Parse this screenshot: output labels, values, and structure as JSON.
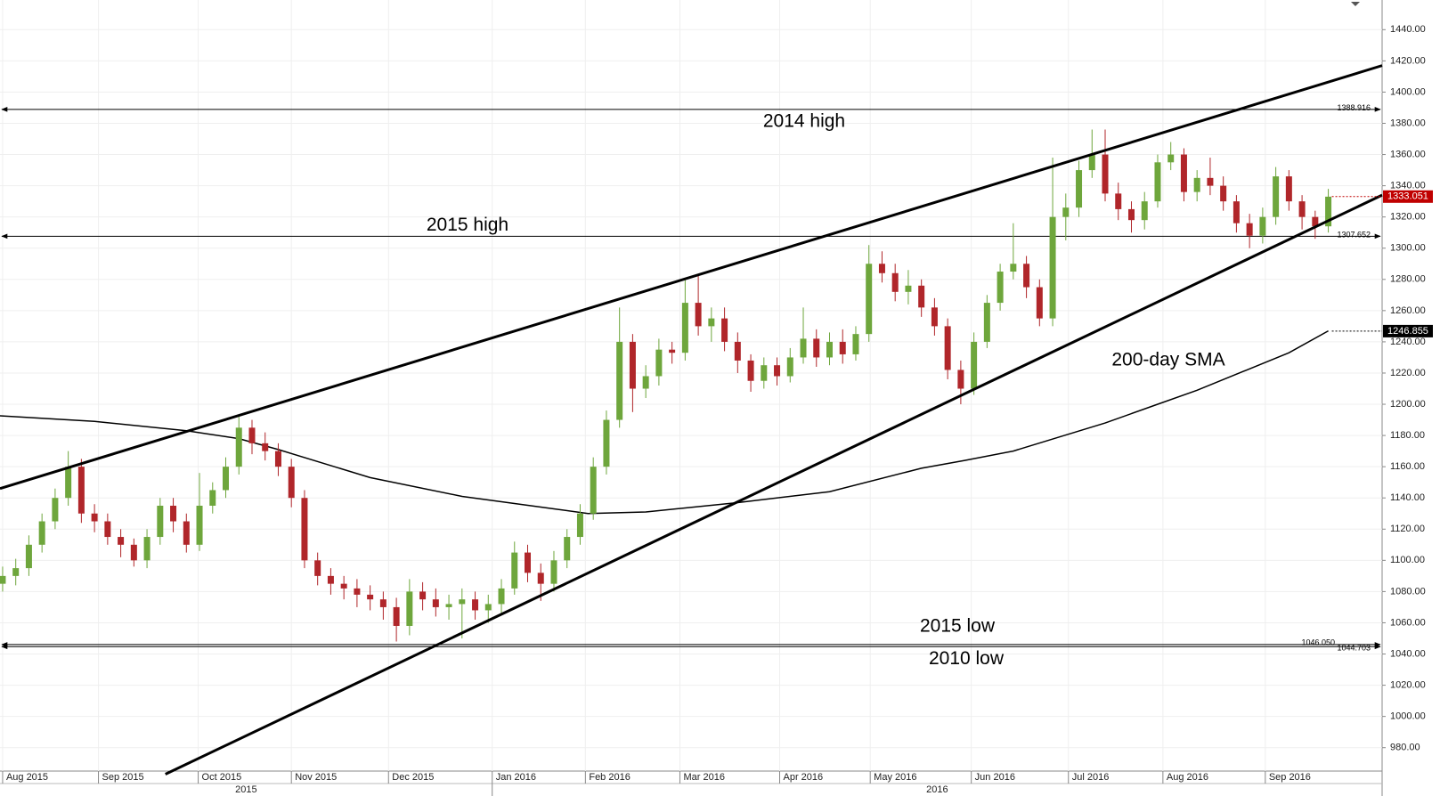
{
  "chart_data": {
    "type": "candlestick",
    "up_color": "#6ea63c",
    "down_color": "#b0262a",
    "grid": true,
    "xlim": [
      -0.2,
      105.1
    ],
    "ylim": [
      965,
      1459
    ],
    "xticks": [
      {
        "value": 0,
        "label": "Aug 2015"
      },
      {
        "value": 7.3,
        "label": "Sep 2015"
      },
      {
        "value": 14.9,
        "label": "Oct 2015"
      },
      {
        "value": 22,
        "label": "Nov 2015"
      },
      {
        "value": 29.4,
        "label": "Dec 2015"
      },
      {
        "value": 37.3,
        "label": "Jan 2016"
      },
      {
        "value": 44.4,
        "label": "Feb 2016"
      },
      {
        "value": 51.6,
        "label": "Mar 2016"
      },
      {
        "value": 59.2,
        "label": "Apr 2016"
      },
      {
        "value": 66.1,
        "label": "May 2016"
      },
      {
        "value": 73.8,
        "label": "Jun 2016"
      },
      {
        "value": 81.2,
        "label": "Jul 2016"
      },
      {
        "value": 88.4,
        "label": "Aug 2016"
      },
      {
        "value": 96.2,
        "label": "Sep 2016"
      }
    ],
    "year_labels": [
      "2015",
      "2016"
    ],
    "yticks": [
      {
        "value": 980,
        "label": "980.00"
      },
      {
        "value": 1000,
        "label": "1000.00"
      },
      {
        "value": 1020,
        "label": "1020.00"
      },
      {
        "value": 1040,
        "label": "1040.00"
      },
      {
        "value": 1060,
        "label": "1060.00"
      },
      {
        "value": 1080,
        "label": "1080.00"
      },
      {
        "value": 1100,
        "label": "1100.00"
      },
      {
        "value": 1120,
        "label": "1120.00"
      },
      {
        "value": 1140,
        "label": "1140.00"
      },
      {
        "value": 1160,
        "label": "1160.00"
      },
      {
        "value": 1180,
        "label": "1180.00"
      },
      {
        "value": 1200,
        "label": "1200.00"
      },
      {
        "value": 1220,
        "label": "1220.00"
      },
      {
        "value": 1240,
        "label": "1240.00"
      },
      {
        "value": 1260,
        "label": "1260.00"
      },
      {
        "value": 1280,
        "label": "1280.00"
      },
      {
        "value": 1300,
        "label": "1300.00"
      },
      {
        "value": 1320,
        "label": "1320.00"
      },
      {
        "value": 1340,
        "label": "1340.00"
      },
      {
        "value": 1360,
        "label": "1360.00"
      },
      {
        "value": 1380,
        "label": "1380.00"
      },
      {
        "value": 1400,
        "label": "1400.00"
      },
      {
        "value": 1420,
        "label": "1420.00"
      },
      {
        "value": 1440,
        "label": "1440.00"
      }
    ],
    "series": [
      {
        "x": [
          0,
          1,
          2,
          3,
          4,
          5,
          6,
          7,
          8,
          9,
          10,
          11,
          12,
          13,
          14,
          15,
          16,
          17,
          18,
          19,
          20,
          21,
          22,
          23,
          24,
          25,
          26,
          27,
          28,
          29,
          30,
          31,
          32,
          33,
          34,
          35,
          36,
          37,
          38,
          39,
          40,
          41,
          42,
          43,
          44,
          45,
          46,
          47,
          48,
          49,
          50,
          51,
          52,
          53,
          54,
          55,
          56,
          57,
          58,
          59,
          60,
          61,
          62,
          63,
          64,
          65,
          66,
          67,
          68,
          69,
          70,
          71,
          72,
          73,
          74,
          75,
          76,
          77,
          78,
          79,
          80,
          81,
          82,
          83,
          84,
          85,
          86,
          87,
          88,
          89,
          90,
          91,
          92,
          93,
          94,
          95,
          96,
          97,
          98,
          99,
          100,
          101
        ],
        "open": [
          1085,
          1090,
          1095,
          1110,
          1125,
          1140,
          1160,
          1130,
          1125,
          1115,
          1110,
          1100,
          1115,
          1135,
          1125,
          1110,
          1135,
          1145,
          1160,
          1185,
          1175,
          1170,
          1160,
          1140,
          1100,
          1090,
          1085,
          1082,
          1078,
          1075,
          1070,
          1058,
          1080,
          1075,
          1070,
          1072,
          1075,
          1068,
          1072,
          1082,
          1105,
          1092,
          1085,
          1100,
          1115,
          1130,
          1160,
          1190,
          1240,
          1210,
          1218,
          1235,
          1233,
          1265,
          1250,
          1255,
          1240,
          1228,
          1215,
          1225,
          1218,
          1230,
          1242,
          1230,
          1240,
          1232,
          1245,
          1290,
          1284,
          1272,
          1276,
          1262,
          1250,
          1222,
          1210,
          1240,
          1265,
          1285,
          1290,
          1275,
          1255,
          1320,
          1326,
          1350,
          1360,
          1335,
          1325,
          1318,
          1330,
          1355,
          1360,
          1336,
          1345,
          1340,
          1330,
          1316,
          1308,
          1320,
          1346,
          1330,
          1320,
          1314
        ],
        "high": [
          1096,
          1101,
          1116,
          1130,
          1146,
          1170,
          1165,
          1136,
          1130,
          1120,
          1114,
          1120,
          1140,
          1140,
          1130,
          1156,
          1150,
          1166,
          1192,
          1190,
          1182,
          1175,
          1165,
          1145,
          1105,
          1095,
          1090,
          1088,
          1084,
          1080,
          1076,
          1088,
          1086,
          1082,
          1078,
          1082,
          1080,
          1078,
          1088,
          1112,
          1110,
          1098,
          1106,
          1120,
          1136,
          1166,
          1196,
          1262,
          1245,
          1225,
          1242,
          1240,
          1280,
          1283,
          1262,
          1262,
          1246,
          1232,
          1230,
          1230,
          1236,
          1262,
          1248,
          1246,
          1248,
          1250,
          1302,
          1298,
          1290,
          1286,
          1280,
          1268,
          1255,
          1228,
          1246,
          1270,
          1290,
          1316,
          1295,
          1280,
          1358,
          1335,
          1356,
          1376,
          1376,
          1342,
          1330,
          1336,
          1360,
          1368,
          1364,
          1350,
          1358,
          1346,
          1334,
          1322,
          1326,
          1352,
          1350,
          1334,
          1324,
          1338
        ],
        "low": [
          1080,
          1084,
          1090,
          1105,
          1120,
          1135,
          1124,
          1118,
          1110,
          1102,
          1096,
          1095,
          1110,
          1118,
          1105,
          1106,
          1130,
          1140,
          1155,
          1168,
          1164,
          1154,
          1134,
          1095,
          1084,
          1078,
          1075,
          1070,
          1068,
          1062,
          1048,
          1052,
          1068,
          1064,
          1062,
          1050,
          1062,
          1060,
          1066,
          1078,
          1086,
          1074,
          1080,
          1095,
          1110,
          1126,
          1155,
          1185,
          1195,
          1204,
          1212,
          1226,
          1228,
          1244,
          1240,
          1234,
          1220,
          1208,
          1210,
          1212,
          1214,
          1226,
          1224,
          1225,
          1226,
          1228,
          1240,
          1278,
          1266,
          1264,
          1256,
          1244,
          1216,
          1200,
          1206,
          1236,
          1260,
          1280,
          1268,
          1250,
          1250,
          1305,
          1320,
          1345,
          1330,
          1318,
          1310,
          1312,
          1326,
          1350,
          1330,
          1330,
          1334,
          1324,
          1310,
          1300,
          1303,
          1315,
          1324,
          1312,
          1306,
          1310
        ],
        "close": [
          1090,
          1095,
          1110,
          1125,
          1140,
          1160,
          1130,
          1125,
          1115,
          1110,
          1100,
          1115,
          1135,
          1125,
          1110,
          1135,
          1145,
          1160,
          1185,
          1175,
          1170,
          1160,
          1140,
          1100,
          1090,
          1085,
          1082,
          1078,
          1075,
          1070,
          1058,
          1080,
          1075,
          1070,
          1072,
          1075,
          1068,
          1072,
          1082,
          1105,
          1092,
          1085,
          1100,
          1115,
          1130,
          1160,
          1190,
          1240,
          1210,
          1218,
          1235,
          1233,
          1265,
          1250,
          1255,
          1240,
          1228,
          1215,
          1225,
          1218,
          1230,
          1242,
          1230,
          1240,
          1232,
          1245,
          1290,
          1284,
          1272,
          1276,
          1262,
          1250,
          1222,
          1210,
          1240,
          1265,
          1285,
          1290,
          1275,
          1255,
          1320,
          1326,
          1350,
          1360,
          1335,
          1325,
          1318,
          1330,
          1355,
          1360,
          1336,
          1345,
          1340,
          1330,
          1316,
          1308,
          1320,
          1346,
          1330,
          1320,
          1314,
          1333
        ]
      }
    ],
    "sma": {
      "name": "200-day SMA",
      "color": "#000000",
      "x": [
        -0.2,
        7,
        14,
        18,
        21,
        28,
        35,
        42,
        44.6,
        49,
        56,
        63,
        70,
        73.3,
        77,
        84,
        88,
        91,
        98,
        101
      ],
      "values": [
        1192.6,
        1189,
        1183,
        1178,
        1171,
        1153,
        1141,
        1133,
        1130,
        1131,
        1137,
        1144,
        1159,
        1164,
        1170,
        1188,
        1200,
        1209,
        1233,
        1247
      ]
    },
    "trendlines": [
      {
        "x": [
          -0.2,
          105.1
        ],
        "values": [
          1146,
          1417
        ]
      },
      {
        "x": [
          12.4,
          105.1
        ],
        "values": [
          963,
          1334
        ]
      }
    ],
    "levels": {
      "names": [
        "2014 high",
        "2015 high",
        "2015 low",
        "2010 low"
      ],
      "values": [
        1388.916,
        1307.652,
        1046.05,
        1044.703
      ],
      "value_labels": [
        "1388.916",
        "1307.652",
        "1046.050",
        "1044.703"
      ]
    },
    "last_price": 1333.051,
    "sma_last": 1246.855
  }
}
